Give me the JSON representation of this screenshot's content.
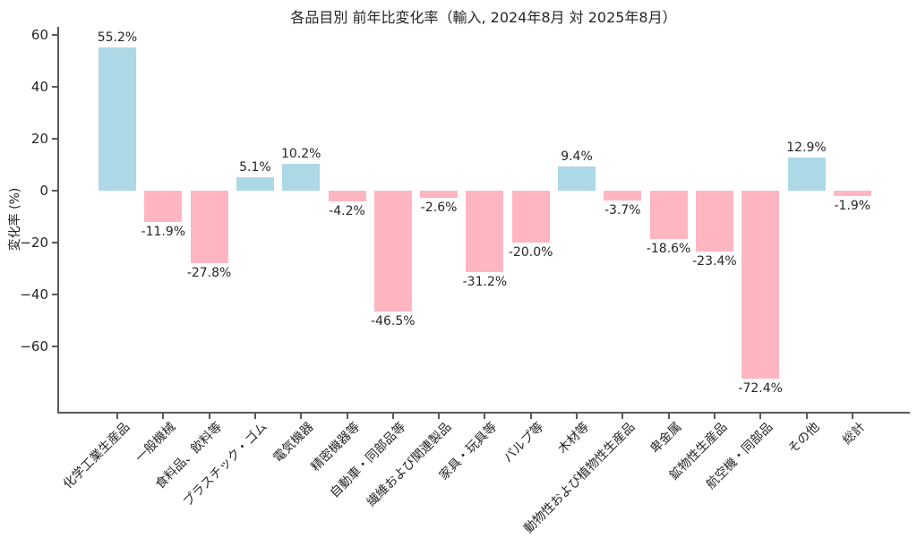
{
  "chart_data": {
    "type": "bar",
    "title": "各品目別 前年比変化率（輸入, 2024年8月 対 2025年8月）",
    "xlabel": "",
    "ylabel": "変化率 (%)",
    "ylim": [
      -85,
      63
    ],
    "grid": false,
    "legend": null,
    "categories": [
      "化学工業生産品",
      "一般機械",
      "食料品、飲料等",
      "プラスチック・ゴム",
      "電気機器",
      "精密機器等",
      "自動車・同部品等",
      "繊維および関連製品",
      "家具・玩具等",
      "パルプ等",
      "木材等",
      "動物性および植物性生産品",
      "卑金属",
      "鉱物性生産品",
      "航空機・同部品",
      "その他",
      "総計"
    ],
    "values": [
      55.2,
      -11.9,
      -27.8,
      5.1,
      10.2,
      -4.2,
      -46.5,
      -2.6,
      -31.2,
      -20.0,
      9.4,
      -3.7,
      -18.6,
      -23.4,
      -72.4,
      12.9,
      -1.9
    ],
    "bar_labels": [
      "55.2%",
      "-11.9%",
      "-27.8%",
      "5.1%",
      "10.2%",
      "-4.2%",
      "-46.5%",
      "-2.6%",
      "-31.2%",
      "-20.0%",
      "9.4%",
      "-3.7%",
      "-18.6%",
      "-23.4%",
      "-72.4%",
      "12.9%",
      "-1.9%"
    ],
    "yticks": [
      {
        "value": 60,
        "label": "60"
      },
      {
        "value": 40,
        "label": "40"
      },
      {
        "value": 20,
        "label": "20"
      },
      {
        "value": 0,
        "label": "0"
      },
      {
        "value": -20,
        "label": "−20"
      },
      {
        "value": -40,
        "label": "−40"
      },
      {
        "value": -60,
        "label": "−60"
      }
    ],
    "colors": {
      "positive": "#ADD8E6",
      "negative": "#FFB6C1",
      "text": "#262626",
      "axis": "#5a5a5a",
      "background": "#ffffff"
    }
  }
}
